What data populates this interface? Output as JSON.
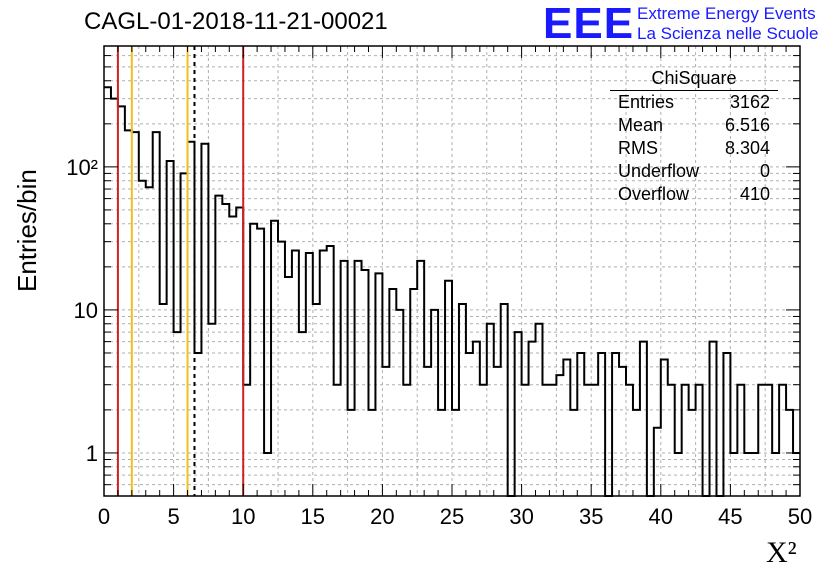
{
  "header": {
    "title": "CAGL-01-2018-11-21-00021",
    "logo_mark": "EEE",
    "logo_line1": "Extreme Energy Events",
    "logo_line2": "La Scienza nelle Scuole"
  },
  "stats": {
    "title": "ChiSquare",
    "rows": [
      {
        "label": "Entries",
        "value": "3162"
      },
      {
        "label": "Mean",
        "value": "6.516"
      },
      {
        "label": "RMS",
        "value": "8.304"
      },
      {
        "label": "Underflow",
        "value": "0"
      },
      {
        "label": "Overflow",
        "value": "410"
      }
    ]
  },
  "colors": {
    "red_line": "#d42020",
    "yellow_line": "#f0c020",
    "histogram": "#000000",
    "grid": "#b0b0b0",
    "logo": "#1a1aff"
  },
  "chart_data": {
    "type": "histogram",
    "ylabel": "Entries/bin",
    "xlabel": "Χ²",
    "xlim": [
      0,
      50
    ],
    "ylim": [
      0.5,
      700
    ],
    "yscale": "log",
    "grid": true,
    "bin_width": 0.5,
    "x_ticks": [
      "0",
      "5",
      "10",
      "15",
      "20",
      "25",
      "30",
      "35",
      "40",
      "45",
      "50"
    ],
    "y_ticks": [
      {
        "value": 1,
        "label": "1"
      },
      {
        "value": 10,
        "label": "10"
      },
      {
        "value": 100,
        "label": "10²"
      }
    ],
    "values": [
      360,
      300,
      265,
      180,
      175,
      80,
      72,
      175,
      11,
      110,
      7,
      90,
      150,
      5,
      145,
      8,
      63,
      55,
      45,
      52,
      3,
      40,
      37,
      1,
      42,
      30,
      17,
      26,
      7,
      25,
      11,
      26,
      28,
      3,
      22,
      2,
      22,
      19,
      2,
      18,
      4,
      14,
      10,
      3,
      14,
      22,
      4,
      10,
      2,
      16,
      2,
      11,
      5,
      6,
      3,
      8,
      4,
      11,
      0.5,
      7,
      3,
      6,
      8,
      3,
      3,
      3.5,
      4.5,
      2,
      5,
      3,
      3,
      5,
      0.5,
      5,
      4,
      3,
      2,
      6,
      0.5,
      1.5,
      4.5,
      3,
      1,
      3,
      2,
      3,
      0.5,
      6,
      0.5,
      5,
      1,
      3,
      1,
      1,
      3,
      3,
      1,
      3,
      2,
      1
    ],
    "vlines": [
      {
        "x": 1,
        "color": "red",
        "style": "solid"
      },
      {
        "x": 2,
        "color": "yellow",
        "style": "solid"
      },
      {
        "x": 6,
        "color": "yellow",
        "style": "solid"
      },
      {
        "x": 6.5,
        "color": "black",
        "style": "dashed"
      },
      {
        "x": 10,
        "color": "red",
        "style": "solid"
      }
    ]
  }
}
